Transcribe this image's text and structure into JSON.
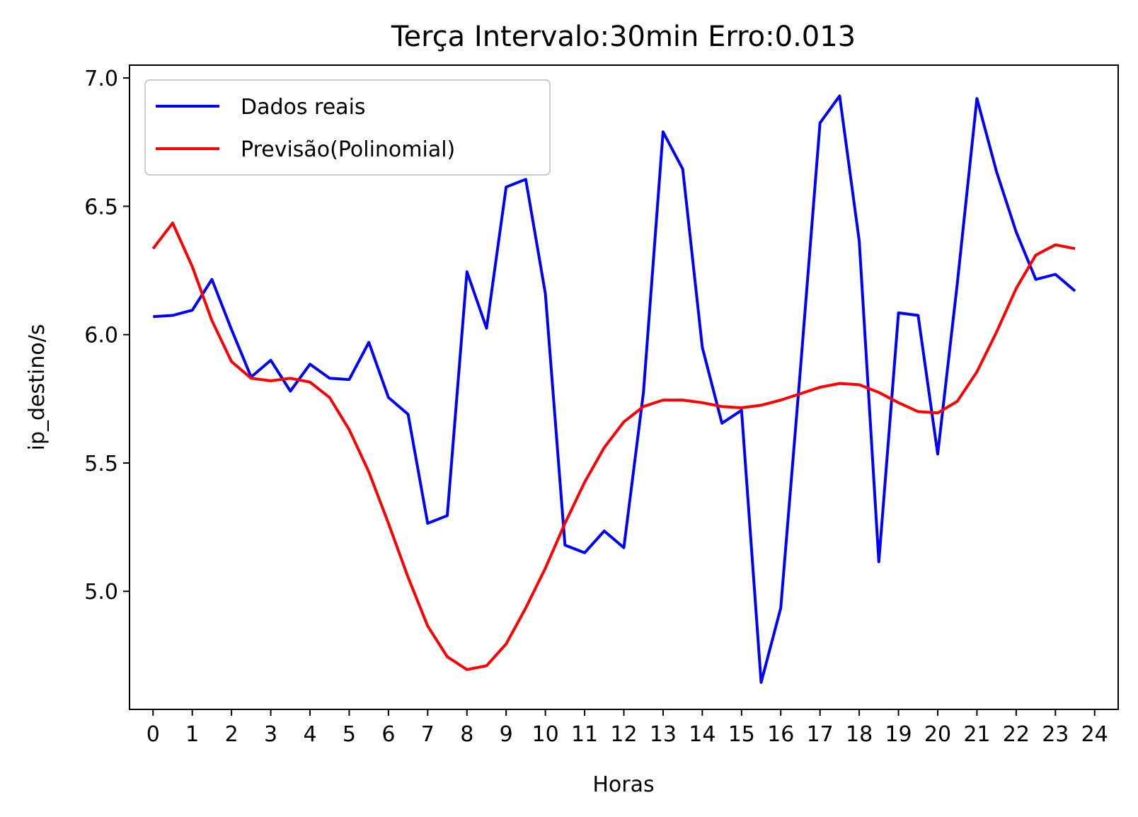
{
  "chart_data": {
    "type": "line",
    "title": "Terça Intervalo:30min Erro:0.013",
    "xlabel": "Horas",
    "ylabel": "ip_destino/s",
    "xlim": [
      -0.6,
      24.6
    ],
    "ylim": [
      4.54,
      7.05
    ],
    "xticks": [
      0,
      1,
      2,
      3,
      4,
      5,
      6,
      7,
      8,
      9,
      10,
      11,
      12,
      13,
      14,
      15,
      16,
      17,
      18,
      19,
      20,
      21,
      22,
      23,
      24
    ],
    "yticks": [
      5.0,
      5.5,
      6.0,
      6.5,
      7.0
    ],
    "ytick_labels": [
      "5.0",
      "5.5",
      "6.0",
      "6.5",
      "7.0"
    ],
    "grid": false,
    "legend_position": "top-left",
    "x": [
      0,
      0.5,
      1,
      1.5,
      2,
      2.5,
      3,
      3.5,
      4,
      4.5,
      5,
      5.5,
      6,
      6.5,
      7,
      7.5,
      8,
      8.5,
      9,
      9.5,
      10,
      10.5,
      11,
      11.5,
      12,
      12.5,
      13,
      13.5,
      14,
      14.5,
      15,
      15.5,
      16,
      16.5,
      17,
      17.5,
      18,
      18.5,
      19,
      19.5,
      20,
      20.5,
      21,
      21.5,
      22,
      22.5,
      23,
      23.5
    ],
    "series": [
      {
        "name": "Dados reais",
        "color": "#0000ff",
        "values": [
          6.07,
          6.075,
          6.095,
          6.215,
          6.02,
          5.835,
          5.9,
          5.78,
          5.885,
          5.83,
          5.825,
          5.97,
          5.755,
          5.69,
          5.265,
          5.295,
          6.245,
          6.025,
          6.575,
          6.605,
          6.16,
          5.18,
          5.15,
          5.235,
          5.17,
          5.775,
          6.79,
          6.645,
          5.95,
          5.655,
          5.705,
          4.645,
          4.935,
          5.865,
          6.825,
          6.93,
          6.365,
          5.115,
          6.085,
          6.075,
          5.535,
          6.2,
          6.92,
          6.635,
          6.4,
          6.215,
          6.235,
          6.17
        ]
      },
      {
        "name": "Previsão(Polinomial)",
        "color": "#ff0000",
        "values": [
          6.335,
          6.435,
          6.265,
          6.055,
          5.895,
          5.83,
          5.82,
          5.83,
          5.815,
          5.755,
          5.63,
          5.465,
          5.265,
          5.055,
          4.865,
          4.745,
          4.695,
          4.71,
          4.795,
          4.935,
          5.09,
          5.265,
          5.425,
          5.56,
          5.66,
          5.72,
          5.745,
          5.745,
          5.735,
          5.72,
          5.715,
          5.725,
          5.745,
          5.77,
          5.795,
          5.81,
          5.805,
          5.775,
          5.735,
          5.7,
          5.695,
          5.74,
          5.855,
          6.01,
          6.18,
          6.31,
          6.35,
          6.335
        ]
      }
    ]
  }
}
